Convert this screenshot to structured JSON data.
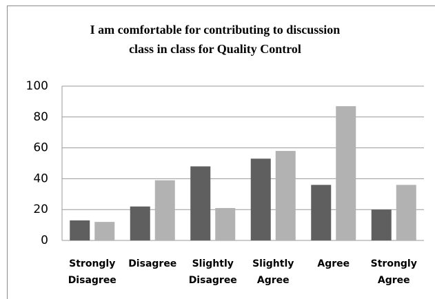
{
  "chart_data": {
    "type": "bar",
    "title": [
      "I am comfortable for contributing to discussion",
      "class  in class for Quality Control"
    ],
    "categories": [
      [
        "Strongly",
        "Disagree"
      ],
      [
        "Disagree"
      ],
      [
        "Slightly",
        "Disagree"
      ],
      [
        "Slightly",
        "Agree"
      ],
      [
        "Agree"
      ],
      [
        "Strongly",
        "Agree"
      ]
    ],
    "series": [
      {
        "color": "#5f5f5f",
        "values": [
          13,
          22,
          48,
          53,
          36,
          20
        ]
      },
      {
        "color": "#b2b2b2",
        "values": [
          12,
          39,
          21,
          58,
          87,
          36
        ]
      }
    ],
    "ylim": [
      0,
      100
    ],
    "yticks": [
      0,
      20,
      40,
      60,
      80,
      100
    ],
    "grid": true
  }
}
